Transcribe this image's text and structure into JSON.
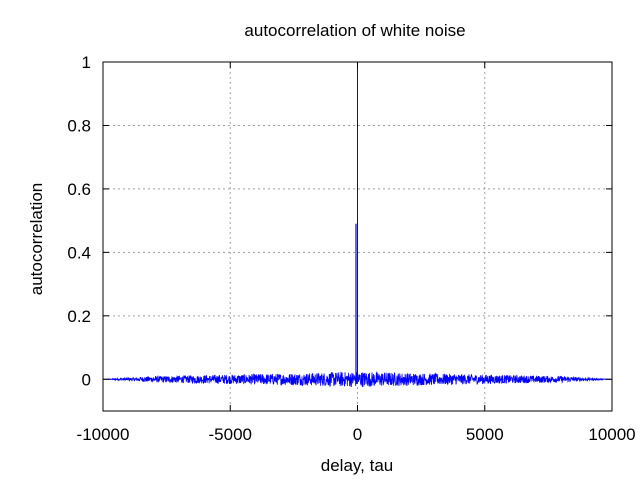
{
  "chart_data": {
    "type": "line",
    "title": "autocorrelation of white noise",
    "xlabel": "delay, tau",
    "ylabel": "autocorrelation",
    "xlim": [
      -10000,
      10000
    ],
    "ylim": [
      -0.1,
      1
    ],
    "x_ticks": [
      -10000,
      -5000,
      0,
      5000,
      10000
    ],
    "x_tick_labels": [
      "-10000",
      "-5000",
      "0",
      "5000",
      "10000"
    ],
    "y_ticks": [
      0,
      0.2,
      0.4,
      0.6,
      0.8,
      1
    ],
    "y_tick_labels": [
      "0",
      "0.2",
      "0.4",
      "0.6",
      "0.8",
      "1"
    ],
    "grid": true,
    "series": [
      {
        "color": "#0000ff",
        "peak": {
          "x": 0,
          "y": 1
        },
        "secondary_peak": {
          "x": 0,
          "y": 0.49
        },
        "noise_amplitude_envelope": {
          "x": [
            -10000,
            -8000,
            -5000,
            -2000,
            0,
            2000,
            5000,
            8000,
            10000
          ],
          "y": [
            0.0,
            0.01,
            0.015,
            0.02,
            0.025,
            0.02,
            0.015,
            0.01,
            0.0
          ]
        }
      }
    ],
    "line_color": "#0000ff"
  }
}
